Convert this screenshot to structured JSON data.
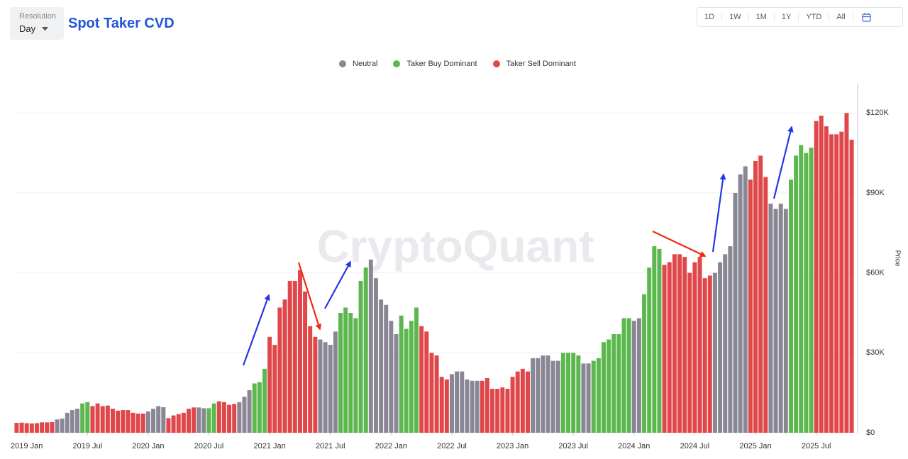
{
  "header": {
    "resolution_label": "Resolution",
    "resolution": "Day"
  },
  "range_buttons": [
    "1D",
    "1W",
    "1M",
    "1Y",
    "YTD",
    "All"
  ],
  "watermark": "CryptoQuant",
  "chart_data": {
    "type": "bar",
    "title": "Spot Taker CVD",
    "ylabel": "Price",
    "x": [
      -1,
      -0.5,
      0,
      0.5,
      1,
      1.5,
      2,
      2.5,
      3,
      3.5,
      4,
      4.5,
      5,
      5.5,
      6,
      6.5,
      7,
      7.5,
      8,
      8.5,
      9,
      9.5,
      10,
      10.5,
      11,
      11.5,
      12,
      12.5,
      13,
      13.5,
      14,
      14.5,
      15,
      15.5,
      16,
      16.5,
      17,
      17.5,
      18,
      18.5,
      19,
      19.5,
      20,
      20.5,
      21,
      21.5,
      22,
      22.5,
      23,
      23.5,
      24,
      24.5,
      25,
      25.5,
      26,
      26.5,
      27,
      27.5,
      28,
      28.5,
      29,
      29.5,
      30,
      30.5,
      31,
      31.5,
      32,
      32.5,
      33,
      33.5,
      34,
      34.5,
      35,
      35.5,
      36,
      36.5,
      37,
      37.5,
      38,
      38.5,
      39,
      39.5,
      40,
      40.5,
      41,
      41.5,
      42,
      42.5,
      43,
      43.5,
      44,
      44.5,
      45,
      45.5,
      46,
      46.5,
      47,
      47.5,
      48,
      48.5,
      49,
      49.5,
      50,
      50.5,
      51,
      51.5,
      52,
      52.5,
      53,
      53.5,
      54,
      54.5,
      55,
      55.5,
      56,
      56.5,
      57,
      57.5,
      58,
      58.5,
      59,
      59.5,
      60,
      60.5,
      61,
      61.5,
      62,
      62.5,
      63,
      63.5,
      64,
      64.5,
      65,
      65.5,
      66,
      66.5,
      67,
      67.5,
      68,
      68.5,
      69,
      69.5,
      70,
      70.5,
      71,
      71.5,
      72,
      72.5,
      73,
      73.5,
      74,
      74.5,
      75,
      75.5,
      76,
      76.5,
      77,
      77.5,
      78,
      78.5,
      79,
      79.5,
      80,
      80.5,
      81,
      81.5
    ],
    "xlim": [
      -1.1,
      81.6
    ],
    "xticks": [
      {
        "value": 0,
        "label": "2019 Jan"
      },
      {
        "value": 6,
        "label": "2019 Jul"
      },
      {
        "value": 12,
        "label": "2020 Jan"
      },
      {
        "value": 18,
        "label": "2020 Jul"
      },
      {
        "value": 24,
        "label": "2021 Jan"
      },
      {
        "value": 30,
        "label": "2021 Jul"
      },
      {
        "value": 36,
        "label": "2022 Jan"
      },
      {
        "value": 42,
        "label": "2022 Jul"
      },
      {
        "value": 48,
        "label": "2023 Jan"
      },
      {
        "value": 54,
        "label": "2023 Jul"
      },
      {
        "value": 60,
        "label": "2024 Jan"
      },
      {
        "value": 66,
        "label": "2024 Jul"
      },
      {
        "value": 72,
        "label": "2025 Jan"
      },
      {
        "value": 78,
        "label": "2025 Jul"
      }
    ],
    "ylim": [
      0,
      131000
    ],
    "yticks": [
      {
        "value": 0,
        "label": "$0"
      },
      {
        "value": 30000,
        "label": "$30K"
      },
      {
        "value": 60000,
        "label": "$60K"
      },
      {
        "value": 90000,
        "label": "$90K"
      },
      {
        "value": 120000,
        "label": "$120K"
      }
    ],
    "grid": true,
    "legend": "top",
    "series": [
      {
        "name": "Neutral",
        "color": "#8a8795",
        "values": [
          null,
          null,
          null,
          null,
          null,
          null,
          null,
          null,
          5000,
          5300,
          7500,
          8500,
          9000,
          null,
          null,
          null,
          null,
          null,
          null,
          null,
          null,
          null,
          null,
          null,
          null,
          null,
          8000,
          9000,
          10000,
          9600,
          null,
          null,
          null,
          null,
          null,
          null,
          9500,
          9200,
          null,
          null,
          null,
          null,
          null,
          null,
          11500,
          13500,
          16000,
          null,
          null,
          null,
          null,
          null,
          null,
          null,
          null,
          null,
          null,
          null,
          null,
          null,
          35000,
          34000,
          33000,
          38000,
          null,
          null,
          null,
          null,
          null,
          null,
          65000,
          58000,
          50000,
          48000,
          42000,
          37000,
          null,
          null,
          null,
          null,
          null,
          null,
          null,
          null,
          null,
          null,
          22000,
          23000,
          23000,
          20000,
          19500,
          19500,
          null,
          null,
          null,
          null,
          null,
          null,
          null,
          null,
          null,
          null,
          28000,
          28000,
          29000,
          29000,
          27000,
          27000,
          null,
          null,
          null,
          null,
          26000,
          26000,
          null,
          null,
          null,
          null,
          null,
          null,
          null,
          null,
          42000,
          43000,
          null,
          null,
          null,
          null,
          null,
          null,
          null,
          null,
          null,
          null,
          null,
          null,
          null,
          null,
          60000,
          64000,
          67000,
          70000,
          90000,
          97000,
          100000,
          null,
          null,
          null,
          null,
          86000,
          84000,
          86000,
          84000,
          null,
          null,
          null,
          null,
          null,
          null,
          null,
          null,
          null,
          null,
          null,
          null,
          null
        ]
      },
      {
        "name": "Taker Buy Dominant",
        "color": "#5cb84e",
        "values": [
          null,
          null,
          null,
          null,
          null,
          null,
          null,
          null,
          null,
          null,
          null,
          null,
          null,
          11000,
          11500,
          null,
          null,
          null,
          null,
          null,
          null,
          null,
          null,
          null,
          null,
          null,
          null,
          null,
          null,
          null,
          null,
          null,
          null,
          null,
          null,
          null,
          null,
          null,
          9200,
          11000,
          null,
          null,
          null,
          null,
          null,
          null,
          null,
          18500,
          19000,
          24000,
          null,
          null,
          null,
          null,
          null,
          null,
          null,
          null,
          null,
          null,
          null,
          null,
          null,
          null,
          45000,
          47000,
          45000,
          43000,
          57000,
          62000,
          null,
          null,
          null,
          null,
          null,
          null,
          44000,
          39000,
          42000,
          47000,
          null,
          null,
          null,
          null,
          null,
          null,
          null,
          null,
          null,
          null,
          null,
          null,
          null,
          null,
          null,
          null,
          null,
          null,
          null,
          null,
          null,
          null,
          null,
          null,
          null,
          null,
          null,
          null,
          30000,
          30000,
          30000,
          29000,
          null,
          null,
          27000,
          28000,
          34000,
          35000,
          37000,
          37000,
          43000,
          43000,
          null,
          null,
          52000,
          62000,
          70000,
          69000,
          null,
          null,
          null,
          null,
          null,
          null,
          null,
          null,
          null,
          null,
          null,
          null,
          null,
          null,
          null,
          null,
          null,
          null,
          null,
          null,
          null,
          null,
          null,
          null,
          null,
          95000,
          104000,
          108000,
          105000,
          107000,
          null,
          null,
          null,
          null,
          null,
          null,
          null,
          null
        ]
      },
      {
        "name": "Taker Sell Dominant",
        "color": "#e0474a",
        "values": [
          3700,
          3800,
          3600,
          3500,
          3600,
          3900,
          3900,
          4000,
          null,
          null,
          null,
          null,
          null,
          null,
          null,
          10000,
          11000,
          10000,
          10200,
          9000,
          8300,
          8500,
          8500,
          7500,
          7200,
          7200,
          null,
          null,
          null,
          null,
          5500,
          6500,
          7000,
          7500,
          9000,
          9500,
          null,
          null,
          null,
          null,
          11800,
          11500,
          10500,
          10800,
          null,
          null,
          null,
          null,
          null,
          null,
          36000,
          33000,
          47000,
          50000,
          57000,
          57000,
          61000,
          53000,
          40000,
          36000,
          null,
          null,
          null,
          null,
          null,
          null,
          null,
          null,
          null,
          null,
          null,
          null,
          null,
          null,
          null,
          null,
          null,
          null,
          null,
          null,
          40000,
          38000,
          30000,
          29000,
          21000,
          20000,
          null,
          null,
          null,
          null,
          null,
          null,
          19500,
          20500,
          16500,
          16500,
          17000,
          16500,
          21000,
          23000,
          24000,
          23000,
          null,
          null,
          null,
          null,
          null,
          null,
          null,
          null,
          null,
          null,
          null,
          null,
          null,
          null,
          null,
          null,
          null,
          null,
          null,
          null,
          null,
          null,
          null,
          null,
          null,
          null,
          63000,
          64000,
          67000,
          67000,
          66000,
          60000,
          64000,
          66000,
          58000,
          59000,
          null,
          null,
          null,
          null,
          null,
          null,
          null,
          95000,
          102000,
          104000,
          96000,
          null,
          null,
          null,
          null,
          null,
          null,
          null,
          null,
          null,
          117000,
          119000,
          115000,
          112000,
          112000,
          113000,
          120000,
          110000
        ]
      }
    ]
  }
}
